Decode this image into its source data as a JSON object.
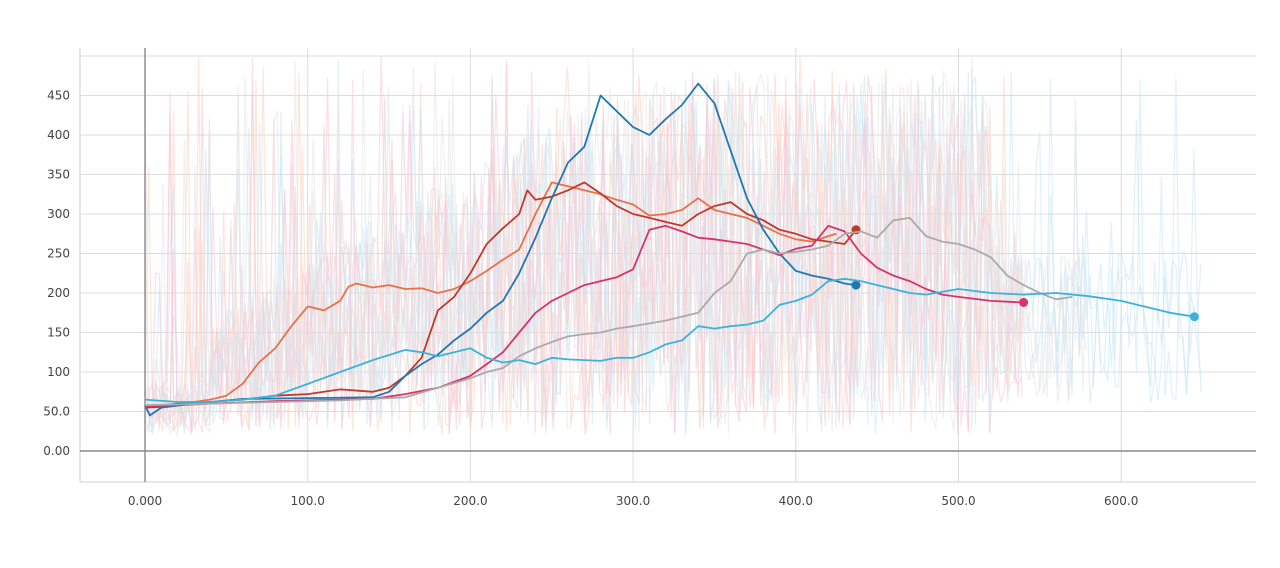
{
  "chart_data": {
    "type": "line",
    "title": "",
    "xlabel": "",
    "ylabel": "",
    "xlim": [
      -40,
      680
    ],
    "ylim": [
      -40,
      510
    ],
    "grid": true,
    "legend": "none",
    "x_ticks": [
      {
        "value": 0,
        "label": "0.000"
      },
      {
        "value": 100,
        "label": "100.0"
      },
      {
        "value": 200,
        "label": "200.0"
      },
      {
        "value": 300,
        "label": "300.0"
      },
      {
        "value": 400,
        "label": "400.0"
      },
      {
        "value": 500,
        "label": "500.0"
      },
      {
        "value": 600,
        "label": "600.0"
      }
    ],
    "y_ticks": [
      {
        "value": 0,
        "label": "0.00"
      },
      {
        "value": 50,
        "label": "50.0"
      },
      {
        "value": 100,
        "label": "100"
      },
      {
        "value": 150,
        "label": "150"
      },
      {
        "value": 200,
        "label": "200"
      },
      {
        "value": 250,
        "label": "250"
      },
      {
        "value": 300,
        "label": "300"
      },
      {
        "value": 350,
        "label": "350"
      },
      {
        "value": 400,
        "label": "400"
      },
      {
        "value": 450,
        "label": "450"
      }
    ],
    "raw_band_colors": [
      "#fbd0c0",
      "#c6e6f5",
      "#f7c6d6",
      "#e3e3e3"
    ],
    "series": [
      {
        "color": "#e8714a",
        "points": [
          [
            0,
            57
          ],
          [
            10,
            58
          ],
          [
            20,
            60
          ],
          [
            30,
            62
          ],
          [
            40,
            65
          ],
          [
            50,
            70
          ],
          [
            60,
            85
          ],
          [
            70,
            112
          ],
          [
            80,
            130
          ],
          [
            90,
            158
          ],
          [
            100,
            183
          ],
          [
            110,
            178
          ],
          [
            120,
            190
          ],
          [
            125,
            208
          ],
          [
            130,
            212
          ],
          [
            140,
            207
          ],
          [
            150,
            210
          ],
          [
            160,
            205
          ],
          [
            170,
            206
          ],
          [
            180,
            200
          ],
          [
            190,
            205
          ],
          [
            200,
            215
          ],
          [
            210,
            228
          ],
          [
            220,
            242
          ],
          [
            230,
            255
          ],
          [
            240,
            300
          ],
          [
            250,
            340
          ],
          [
            260,
            335
          ],
          [
            270,
            330
          ],
          [
            280,
            325
          ],
          [
            290,
            318
          ],
          [
            300,
            312
          ],
          [
            310,
            298
          ],
          [
            320,
            300
          ],
          [
            330,
            305
          ],
          [
            340,
            320
          ],
          [
            350,
            305
          ],
          [
            360,
            300
          ],
          [
            370,
            295
          ],
          [
            380,
            285
          ],
          [
            390,
            275
          ],
          [
            400,
            268
          ],
          [
            410,
            265
          ],
          [
            420,
            272
          ],
          [
            425,
            275
          ]
        ]
      },
      {
        "color": "#c0392b",
        "end_marker": true,
        "points": [
          [
            0,
            55
          ],
          [
            10,
            56
          ],
          [
            20,
            60
          ],
          [
            40,
            62
          ],
          [
            60,
            65
          ],
          [
            80,
            70
          ],
          [
            100,
            72
          ],
          [
            120,
            78
          ],
          [
            140,
            75
          ],
          [
            150,
            80
          ],
          [
            160,
            95
          ],
          [
            170,
            118
          ],
          [
            180,
            178
          ],
          [
            190,
            195
          ],
          [
            200,
            225
          ],
          [
            210,
            262
          ],
          [
            220,
            282
          ],
          [
            230,
            300
          ],
          [
            235,
            330
          ],
          [
            240,
            318
          ],
          [
            250,
            322
          ],
          [
            260,
            330
          ],
          [
            270,
            340
          ],
          [
            280,
            326
          ],
          [
            290,
            310
          ],
          [
            300,
            300
          ],
          [
            310,
            295
          ],
          [
            320,
            290
          ],
          [
            330,
            285
          ],
          [
            340,
            300
          ],
          [
            350,
            310
          ],
          [
            360,
            315
          ],
          [
            370,
            300
          ],
          [
            380,
            292
          ],
          [
            390,
            280
          ],
          [
            400,
            275
          ],
          [
            410,
            268
          ],
          [
            420,
            265
          ],
          [
            430,
            262
          ],
          [
            437,
            280
          ]
        ]
      },
      {
        "color": "#1f77b4",
        "end_marker": true,
        "points": [
          [
            0,
            58
          ],
          [
            3,
            45
          ],
          [
            10,
            55
          ],
          [
            30,
            60
          ],
          [
            60,
            66
          ],
          [
            100,
            67
          ],
          [
            140,
            68
          ],
          [
            150,
            75
          ],
          [
            160,
            95
          ],
          [
            170,
            110
          ],
          [
            180,
            122
          ],
          [
            190,
            140
          ],
          [
            200,
            155
          ],
          [
            210,
            175
          ],
          [
            220,
            190
          ],
          [
            230,
            225
          ],
          [
            240,
            270
          ],
          [
            250,
            320
          ],
          [
            260,
            365
          ],
          [
            270,
            385
          ],
          [
            280,
            450
          ],
          [
            290,
            430
          ],
          [
            300,
            410
          ],
          [
            310,
            400
          ],
          [
            320,
            420
          ],
          [
            330,
            438
          ],
          [
            340,
            465
          ],
          [
            350,
            440
          ],
          [
            360,
            380
          ],
          [
            370,
            320
          ],
          [
            380,
            280
          ],
          [
            390,
            250
          ],
          [
            400,
            228
          ],
          [
            410,
            222
          ],
          [
            420,
            218
          ],
          [
            430,
            212
          ],
          [
            437,
            210
          ]
        ]
      },
      {
        "color": "#d6336c",
        "end_marker": true,
        "points": [
          [
            0,
            57
          ],
          [
            20,
            58
          ],
          [
            40,
            60
          ],
          [
            80,
            63
          ],
          [
            120,
            65
          ],
          [
            140,
            66
          ],
          [
            160,
            72
          ],
          [
            180,
            80
          ],
          [
            200,
            95
          ],
          [
            210,
            110
          ],
          [
            220,
            125
          ],
          [
            230,
            150
          ],
          [
            240,
            175
          ],
          [
            250,
            190
          ],
          [
            260,
            200
          ],
          [
            270,
            210
          ],
          [
            280,
            215
          ],
          [
            290,
            220
          ],
          [
            300,
            230
          ],
          [
            310,
            280
          ],
          [
            320,
            285
          ],
          [
            330,
            278
          ],
          [
            340,
            270
          ],
          [
            350,
            268
          ],
          [
            360,
            265
          ],
          [
            370,
            262
          ],
          [
            380,
            255
          ],
          [
            390,
            248
          ],
          [
            400,
            256
          ],
          [
            410,
            260
          ],
          [
            420,
            285
          ],
          [
            430,
            278
          ],
          [
            440,
            250
          ],
          [
            450,
            232
          ],
          [
            460,
            222
          ],
          [
            470,
            215
          ],
          [
            480,
            205
          ],
          [
            490,
            198
          ],
          [
            500,
            195
          ],
          [
            520,
            190
          ],
          [
            540,
            188
          ]
        ]
      },
      {
        "color": "#aaaaaa",
        "points": [
          [
            0,
            58
          ],
          [
            40,
            60
          ],
          [
            80,
            62
          ],
          [
            120,
            64
          ],
          [
            160,
            68
          ],
          [
            180,
            80
          ],
          [
            200,
            92
          ],
          [
            210,
            100
          ],
          [
            220,
            105
          ],
          [
            230,
            120
          ],
          [
            240,
            130
          ],
          [
            250,
            138
          ],
          [
            260,
            145
          ],
          [
            270,
            148
          ],
          [
            280,
            150
          ],
          [
            290,
            155
          ],
          [
            300,
            158
          ],
          [
            320,
            165
          ],
          [
            340,
            175
          ],
          [
            350,
            200
          ],
          [
            360,
            215
          ],
          [
            370,
            250
          ],
          [
            380,
            255
          ],
          [
            390,
            250
          ],
          [
            400,
            252
          ],
          [
            410,
            255
          ],
          [
            420,
            260
          ],
          [
            430,
            275
          ],
          [
            440,
            278
          ],
          [
            450,
            270
          ],
          [
            460,
            292
          ],
          [
            470,
            295
          ],
          [
            480,
            272
          ],
          [
            490,
            265
          ],
          [
            500,
            262
          ],
          [
            510,
            255
          ],
          [
            520,
            245
          ],
          [
            530,
            222
          ],
          [
            540,
            210
          ],
          [
            550,
            200
          ],
          [
            560,
            192
          ],
          [
            570,
            195
          ]
        ]
      },
      {
        "color": "#3bb3d9",
        "end_marker": true,
        "points": [
          [
            0,
            65
          ],
          [
            20,
            62
          ],
          [
            40,
            62
          ],
          [
            60,
            65
          ],
          [
            80,
            70
          ],
          [
            100,
            85
          ],
          [
            120,
            100
          ],
          [
            140,
            115
          ],
          [
            160,
            128
          ],
          [
            170,
            125
          ],
          [
            180,
            120
          ],
          [
            190,
            125
          ],
          [
            200,
            130
          ],
          [
            210,
            118
          ],
          [
            220,
            112
          ],
          [
            230,
            115
          ],
          [
            240,
            110
          ],
          [
            250,
            118
          ],
          [
            260,
            116
          ],
          [
            270,
            115
          ],
          [
            280,
            114
          ],
          [
            290,
            118
          ],
          [
            300,
            118
          ],
          [
            310,
            125
          ],
          [
            320,
            135
          ],
          [
            330,
            140
          ],
          [
            340,
            158
          ],
          [
            350,
            155
          ],
          [
            360,
            158
          ],
          [
            370,
            160
          ],
          [
            380,
            165
          ],
          [
            390,
            185
          ],
          [
            400,
            190
          ],
          [
            410,
            198
          ],
          [
            420,
            215
          ],
          [
            430,
            218
          ],
          [
            440,
            215
          ],
          [
            450,
            210
          ],
          [
            460,
            205
          ],
          [
            470,
            200
          ],
          [
            480,
            198
          ],
          [
            500,
            205
          ],
          [
            520,
            200
          ],
          [
            540,
            198
          ],
          [
            560,
            200
          ],
          [
            580,
            196
          ],
          [
            600,
            190
          ],
          [
            610,
            185
          ],
          [
            620,
            180
          ],
          [
            630,
            175
          ],
          [
            645,
            170
          ]
        ]
      }
    ]
  }
}
